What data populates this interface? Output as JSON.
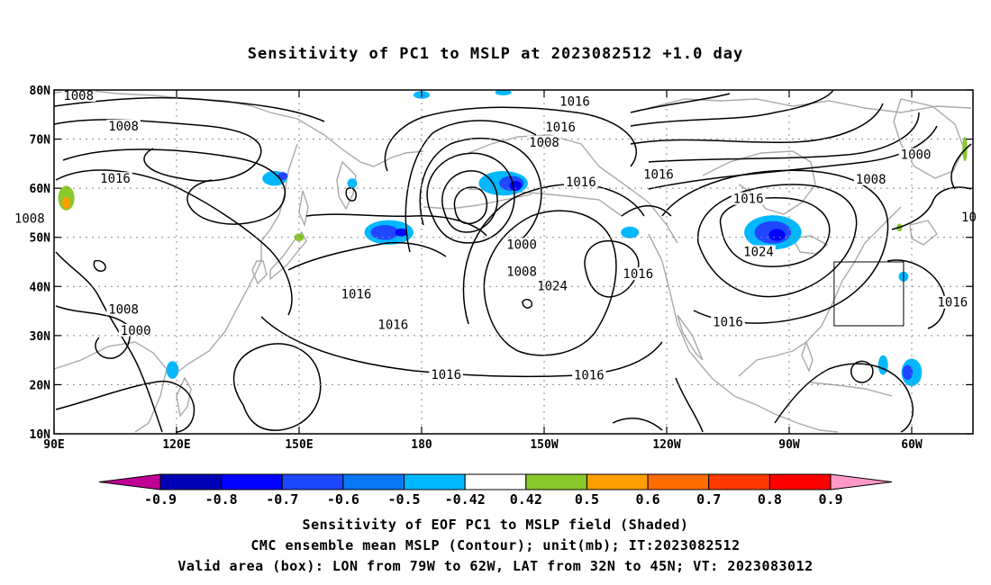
{
  "title": "Sensitivity of PC1 to MSLP at 2023082512 +1.0 day",
  "lat_ticks": [
    "80N",
    "70N",
    "60N",
    "50N",
    "40N",
    "30N",
    "20N",
    "10N"
  ],
  "lon_ticks": [
    "90E",
    "120E",
    "150E",
    "180",
    "150W",
    "120W",
    "90W",
    "60W"
  ],
  "contour_labels": [
    {
      "text": "1008",
      "lon": 96,
      "lat": 78.9
    },
    {
      "text": "1008",
      "lon": 107,
      "lat": 72.7
    },
    {
      "text": "1016",
      "lon": 105,
      "lat": 62
    },
    {
      "text": "1008",
      "lon": 84,
      "lat": 53.9
    },
    {
      "text": "1016",
      "lon": 217.5,
      "lat": 77.7
    },
    {
      "text": "1016",
      "lon": 214,
      "lat": 72.5
    },
    {
      "text": "1008",
      "lon": 210,
      "lat": 69.4
    },
    {
      "text": "1016",
      "lon": 219,
      "lat": 61.3
    },
    {
      "text": "1016",
      "lon": 238,
      "lat": 62.9
    },
    {
      "text": "1016",
      "lon": 260,
      "lat": 57.9
    },
    {
      "text": "1008",
      "lon": 290,
      "lat": 61.9
    },
    {
      "text": "1000",
      "lon": 301,
      "lat": 66.9
    },
    {
      "text": "1000",
      "lon": 204.5,
      "lat": 48.6
    },
    {
      "text": "1008",
      "lon": 204.5,
      "lat": 43.1
    },
    {
      "text": "1024",
      "lon": 212,
      "lat": 40.1
    },
    {
      "text": "1016",
      "lon": 233,
      "lat": 42.6
    },
    {
      "text": "1024",
      "lon": 262.5,
      "lat": 47.1
    },
    {
      "text": "1016",
      "lon": 255,
      "lat": 32.8
    },
    {
      "text": "1016",
      "lon": 310,
      "lat": 36.8
    },
    {
      "text": "1016",
      "lon": 164,
      "lat": 38.5
    },
    {
      "text": "1016",
      "lon": 173,
      "lat": 32.3
    },
    {
      "text": "1016",
      "lon": 186,
      "lat": 22.1
    },
    {
      "text": "1016",
      "lon": 221,
      "lat": 22
    },
    {
      "text": "1008",
      "lon": 107,
      "lat": 35.4
    },
    {
      "text": "1000",
      "lon": 110,
      "lat": 31.1
    },
    {
      "text": "10",
      "lon": 314,
      "lat": 54.2
    }
  ],
  "colorbar": {
    "labels": [
      "-0.9",
      "-0.8",
      "-0.7",
      "-0.6",
      "-0.5",
      "-0.42",
      "0.42",
      "0.5",
      "0.6",
      "0.7",
      "0.8",
      "0.9"
    ],
    "colors": [
      "#c00095",
      "#0000b4",
      "#0000ff",
      "#1f47ff",
      "#0a78f5",
      "#00b8ff",
      "#ffffff",
      "#8ac92b",
      "#ff9e00",
      "#ff6c00",
      "#ff3a00",
      "#ff0000",
      "#ff99c8"
    ]
  },
  "valid_box": {
    "lon_min": -79,
    "lon_max": -62,
    "lat_min": 32,
    "lat_max": 45
  },
  "captions": [
    "Sensitivity of EOF PC1 to MSLP field (Shaded)",
    "CMC ensemble mean MSLP (Contour); unit(mb); IT:2023082512",
    "Valid area (box): LON from 79W to 62W, LAT from 32N to 45N; VT: 2023083012"
  ]
}
